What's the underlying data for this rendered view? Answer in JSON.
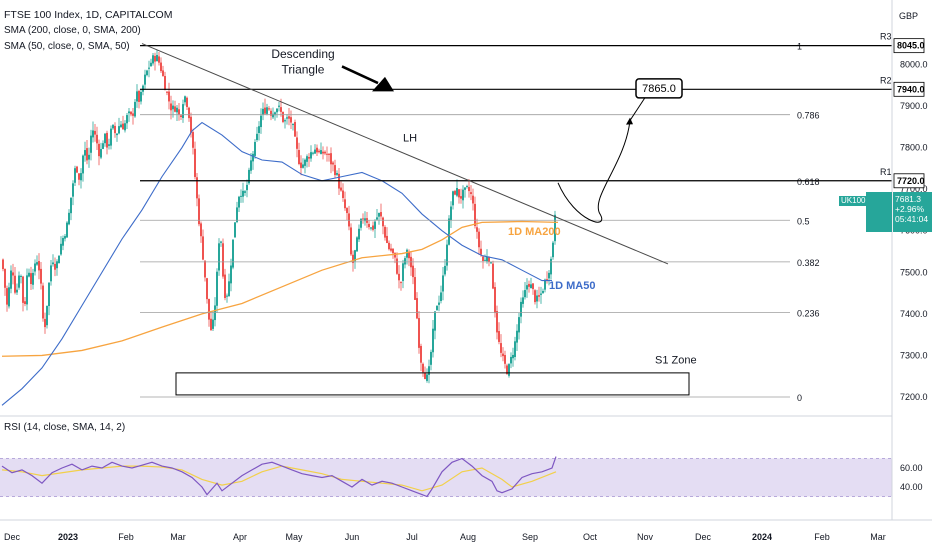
{
  "header": {
    "title": "FTSE 100 Index, 1D, CAPITALCOM",
    "ind1": "SMA (200, close, 0, SMA, 200)",
    "ind2": "SMA (50, close, 0, SMA, 50)",
    "currency": "GBP",
    "rsi_label": "RSI (14, close, SMA, 14, 2)"
  },
  "price_badge": {
    "symbol": "UK100",
    "price": "7681.3",
    "change": "+2.96%",
    "countdown": "05:41:04"
  },
  "colors": {
    "up": "#26a69a",
    "down": "#ef5350",
    "ma200": "#f7a440",
    "ma50": "#3d6cc9",
    "rsi": "#7e57c2",
    "rsi_ma": "#f2d04a",
    "rsi_band": "#e4ddf3",
    "line": "#000000",
    "fib": "#9e9e9e"
  },
  "chart_data": {
    "type": "candlestick",
    "symbol": "FTSE 100 Index",
    "interval": "1D",
    "y_axis_price": {
      "range": [
        7150,
        8090
      ],
      "ticks": [
        7200,
        7300,
        7400,
        7500,
        7600,
        7700,
        7800,
        7900,
        8000
      ]
    },
    "x_axis_labels": [
      "Dec",
      "2023",
      "Feb",
      "Mar",
      "Apr",
      "May",
      "Jun",
      "Jul",
      "Aug",
      "Sep",
      "Oct",
      "Nov",
      "Dec",
      "2024",
      "Feb",
      "Mar"
    ],
    "rsi_ticks": [
      60,
      40
    ],
    "resistance_levels": [
      {
        "name": "R3",
        "value": 8045.0,
        "label": "8045.0"
      },
      {
        "name": "R2",
        "value": 7940.0,
        "label": "7940.0"
      },
      {
        "name": "R1",
        "value": 7720.0,
        "label": "7720.0"
      }
    ],
    "fibonacci": [
      {
        "ratio": "1",
        "price": 8045
      },
      {
        "ratio": "0.786",
        "price": 7879
      },
      {
        "ratio": "0.618",
        "price": 7720
      },
      {
        "ratio": "0.5",
        "price": 7625
      },
      {
        "ratio": "0.382",
        "price": 7525
      },
      {
        "ratio": "0.236",
        "price": 7403
      },
      {
        "ratio": "0",
        "price": 7200
      }
    ],
    "annotations": {
      "pattern": [
        "Descending",
        "Triangle"
      ],
      "trendline": "LH",
      "target": "7865.0",
      "ma200": "1D MA200",
      "ma50": "1D MA50",
      "support": "S1 Zone"
    },
    "close_path": [
      [
        0,
        7530
      ],
      [
        5,
        7420
      ],
      [
        10,
        7520
      ],
      [
        14,
        7440
      ],
      [
        18,
        7520
      ],
      [
        22,
        7400
      ],
      [
        26,
        7520
      ],
      [
        30,
        7470
      ],
      [
        34,
        7540
      ],
      [
        38,
        7500
      ],
      [
        42,
        7350
      ],
      [
        46,
        7450
      ],
      [
        50,
        7540
      ],
      [
        54,
        7510
      ],
      [
        58,
        7560
      ],
      [
        62,
        7590
      ],
      [
        66,
        7620
      ],
      [
        70,
        7700
      ],
      [
        74,
        7760
      ],
      [
        78,
        7720
      ],
      [
        82,
        7800
      ],
      [
        86,
        7760
      ],
      [
        90,
        7850
      ],
      [
        94,
        7820
      ],
      [
        98,
        7780
      ],
      [
        102,
        7830
      ],
      [
        106,
        7800
      ],
      [
        110,
        7850
      ],
      [
        114,
        7830
      ],
      [
        118,
        7860
      ],
      [
        122,
        7850
      ],
      [
        126,
        7880
      ],
      [
        130,
        7870
      ],
      [
        134,
        7930
      ],
      [
        138,
        7910
      ],
      [
        142,
        7960
      ],
      [
        146,
        7990
      ],
      [
        150,
        8010
      ],
      [
        154,
        8020
      ],
      [
        158,
        8000
      ],
      [
        162,
        7960
      ],
      [
        166,
        7920
      ],
      [
        170,
        7890
      ],
      [
        174,
        7900
      ],
      [
        178,
        7870
      ],
      [
        182,
        7930
      ],
      [
        186,
        7900
      ],
      [
        190,
        7820
      ],
      [
        194,
        7700
      ],
      [
        198,
        7600
      ],
      [
        202,
        7520
      ],
      [
        206,
        7400
      ],
      [
        210,
        7350
      ],
      [
        214,
        7450
      ],
      [
        218,
        7620
      ],
      [
        222,
        7450
      ],
      [
        226,
        7450
      ],
      [
        230,
        7550
      ],
      [
        234,
        7650
      ],
      [
        238,
        7700
      ],
      [
        242,
        7680
      ],
      [
        246,
        7720
      ],
      [
        250,
        7780
      ],
      [
        254,
        7810
      ],
      [
        258,
        7870
      ],
      [
        262,
        7890
      ],
      [
        266,
        7900
      ],
      [
        270,
        7880
      ],
      [
        274,
        7900
      ],
      [
        278,
        7890
      ],
      [
        282,
        7860
      ],
      [
        286,
        7870
      ],
      [
        290,
        7860
      ],
      [
        294,
        7800
      ],
      [
        298,
        7760
      ],
      [
        302,
        7760
      ],
      [
        306,
        7780
      ],
      [
        310,
        7790
      ],
      [
        314,
        7800
      ],
      [
        318,
        7780
      ],
      [
        322,
        7790
      ],
      [
        326,
        7780
      ],
      [
        330,
        7760
      ],
      [
        334,
        7740
      ],
      [
        338,
        7700
      ],
      [
        342,
        7660
      ],
      [
        346,
        7630
      ],
      [
        350,
        7510
      ],
      [
        354,
        7560
      ],
      [
        358,
        7610
      ],
      [
        362,
        7640
      ],
      [
        366,
        7620
      ],
      [
        370,
        7600
      ],
      [
        374,
        7630
      ],
      [
        378,
        7640
      ],
      [
        382,
        7600
      ],
      [
        386,
        7560
      ],
      [
        390,
        7550
      ],
      [
        394,
        7520
      ],
      [
        398,
        7460
      ],
      [
        402,
        7530
      ],
      [
        406,
        7550
      ],
      [
        410,
        7500
      ],
      [
        414,
        7420
      ],
      [
        418,
        7300
      ],
      [
        422,
        7260
      ],
      [
        426,
        7240
      ],
      [
        430,
        7330
      ],
      [
        434,
        7420
      ],
      [
        438,
        7440
      ],
      [
        442,
        7500
      ],
      [
        446,
        7600
      ],
      [
        450,
        7680
      ],
      [
        454,
        7700
      ],
      [
        458,
        7680
      ],
      [
        462,
        7690
      ],
      [
        466,
        7700
      ],
      [
        470,
        7680
      ],
      [
        474,
        7600
      ],
      [
        478,
        7550
      ],
      [
        482,
        7520
      ],
      [
        486,
        7550
      ],
      [
        490,
        7500
      ],
      [
        494,
        7380
      ],
      [
        498,
        7310
      ],
      [
        502,
        7280
      ],
      [
        506,
        7260
      ],
      [
        510,
        7300
      ],
      [
        514,
        7340
      ],
      [
        518,
        7410
      ],
      [
        522,
        7440
      ],
      [
        526,
        7480
      ],
      [
        530,
        7460
      ],
      [
        534,
        7430
      ],
      [
        538,
        7440
      ],
      [
        542,
        7470
      ],
      [
        546,
        7500
      ],
      [
        550,
        7540
      ],
      [
        554,
        7682
      ]
    ],
    "ma200_path": [
      [
        0,
        7298
      ],
      [
        40,
        7300
      ],
      [
        80,
        7312
      ],
      [
        120,
        7335
      ],
      [
        160,
        7368
      ],
      [
        200,
        7400
      ],
      [
        240,
        7425
      ],
      [
        280,
        7465
      ],
      [
        320,
        7505
      ],
      [
        360,
        7535
      ],
      [
        400,
        7545
      ],
      [
        420,
        7555
      ],
      [
        440,
        7578
      ],
      [
        460,
        7608
      ],
      [
        480,
        7620
      ],
      [
        520,
        7622
      ],
      [
        556,
        7620
      ]
    ],
    "ma50_path": [
      [
        0,
        7180
      ],
      [
        20,
        7220
      ],
      [
        40,
        7270
      ],
      [
        60,
        7340
      ],
      [
        80,
        7420
      ],
      [
        100,
        7500
      ],
      [
        120,
        7580
      ],
      [
        140,
        7650
      ],
      [
        160,
        7730
      ],
      [
        180,
        7800
      ],
      [
        190,
        7840
      ],
      [
        200,
        7860
      ],
      [
        220,
        7830
      ],
      [
        240,
        7790
      ],
      [
        260,
        7770
      ],
      [
        280,
        7765
      ],
      [
        300,
        7735
      ],
      [
        320,
        7720
      ],
      [
        340,
        7730
      ],
      [
        360,
        7740
      ],
      [
        380,
        7720
      ],
      [
        400,
        7690
      ],
      [
        420,
        7640
      ],
      [
        440,
        7600
      ],
      [
        460,
        7565
      ],
      [
        480,
        7540
      ],
      [
        500,
        7530
      ],
      [
        520,
        7505
      ],
      [
        540,
        7480
      ],
      [
        550,
        7480
      ]
    ],
    "rsi_path": [
      [
        0,
        62
      ],
      [
        10,
        55
      ],
      [
        20,
        58
      ],
      [
        30,
        52
      ],
      [
        40,
        44
      ],
      [
        50,
        55
      ],
      [
        60,
        60
      ],
      [
        70,
        64
      ],
      [
        80,
        58
      ],
      [
        90,
        62
      ],
      [
        100,
        60
      ],
      [
        110,
        66
      ],
      [
        120,
        62
      ],
      [
        130,
        60
      ],
      [
        140,
        63
      ],
      [
        150,
        66
      ],
      [
        160,
        62
      ],
      [
        170,
        60
      ],
      [
        180,
        56
      ],
      [
        190,
        50
      ],
      [
        200,
        40
      ],
      [
        205,
        32
      ],
      [
        210,
        38
      ],
      [
        215,
        44
      ],
      [
        220,
        36
      ],
      [
        230,
        44
      ],
      [
        240,
        52
      ],
      [
        250,
        58
      ],
      [
        260,
        64
      ],
      [
        270,
        66
      ],
      [
        280,
        62
      ],
      [
        290,
        58
      ],
      [
        300,
        54
      ],
      [
        310,
        52
      ],
      [
        320,
        50
      ],
      [
        330,
        52
      ],
      [
        340,
        46
      ],
      [
        350,
        40
      ],
      [
        360,
        48
      ],
      [
        370,
        42
      ],
      [
        380,
        46
      ],
      [
        390,
        44
      ],
      [
        400,
        40
      ],
      [
        410,
        36
      ],
      [
        420,
        32
      ],
      [
        425,
        30
      ],
      [
        430,
        38
      ],
      [
        440,
        56
      ],
      [
        450,
        66
      ],
      [
        460,
        70
      ],
      [
        470,
        62
      ],
      [
        480,
        52
      ],
      [
        490,
        46
      ],
      [
        495,
        36
      ],
      [
        500,
        34
      ],
      [
        510,
        38
      ],
      [
        520,
        50
      ],
      [
        530,
        54
      ],
      [
        540,
        56
      ],
      [
        550,
        60
      ],
      [
        554,
        72
      ]
    ],
    "rsi_ma_path": [
      [
        0,
        58
      ],
      [
        20,
        56
      ],
      [
        40,
        52
      ],
      [
        60,
        55
      ],
      [
        80,
        58
      ],
      [
        100,
        60
      ],
      [
        120,
        62
      ],
      [
        140,
        62
      ],
      [
        160,
        61
      ],
      [
        180,
        58
      ],
      [
        200,
        48
      ],
      [
        220,
        42
      ],
      [
        240,
        46
      ],
      [
        260,
        56
      ],
      [
        280,
        62
      ],
      [
        300,
        58
      ],
      [
        320,
        54
      ],
      [
        340,
        48
      ],
      [
        360,
        46
      ],
      [
        380,
        44
      ],
      [
        400,
        42
      ],
      [
        420,
        36
      ],
      [
        440,
        42
      ],
      [
        460,
        56
      ],
      [
        480,
        60
      ],
      [
        500,
        48
      ],
      [
        510,
        40
      ],
      [
        530,
        46
      ],
      [
        554,
        56
      ]
    ]
  }
}
